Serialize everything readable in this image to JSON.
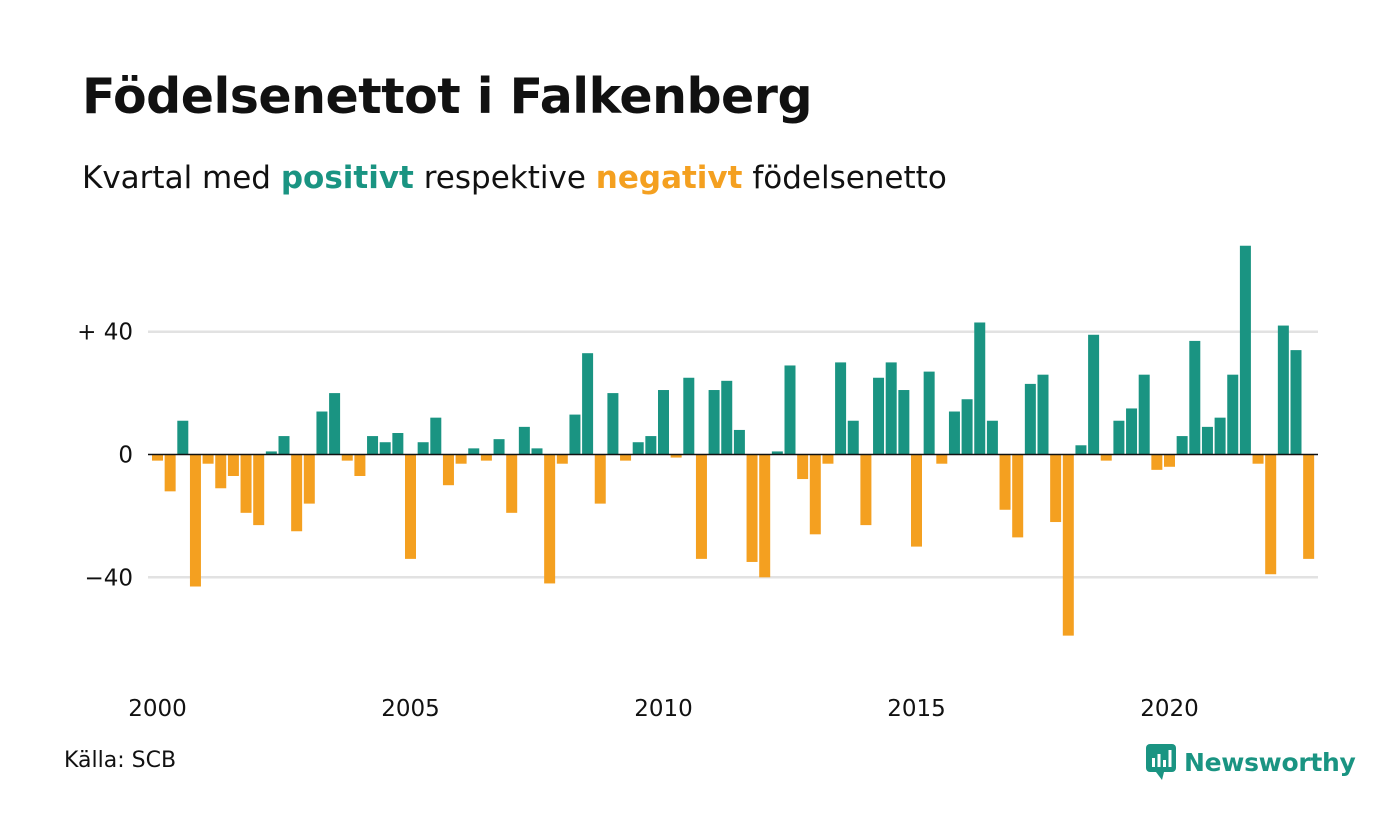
{
  "title": "Födelsenettot i Falkenberg",
  "subtitle": {
    "prefix": "Kvartal med ",
    "positive": "positivt",
    "middle": " respektive ",
    "negative": "negativt",
    "suffix": " födelsenetto"
  },
  "source": "Källa: SCB",
  "brand": {
    "name": "Newsworthy",
    "icon": "newsworthy-logo-icon"
  },
  "colors": {
    "positive": "#1a9482",
    "negative": "#f4a020",
    "grid": "#e2e2e2",
    "zero_line": "#111111"
  },
  "chart_data": {
    "type": "bar",
    "xlabel": "",
    "ylabel": "",
    "ylim": [
      -65,
      70
    ],
    "y_ticks": [
      {
        "value": 40,
        "label": "+ 40"
      },
      {
        "value": 0,
        "label": "0"
      },
      {
        "value": -40,
        "label": "−40"
      }
    ],
    "x_ticks": [
      {
        "value": 2000,
        "label": "2000"
      },
      {
        "value": 2005,
        "label": "2005"
      },
      {
        "value": 2010,
        "label": "2010"
      },
      {
        "value": 2015,
        "label": "2015"
      },
      {
        "value": 2020,
        "label": "2020"
      }
    ],
    "start_year": 2000,
    "grid": true,
    "legend": "none",
    "values": [
      -2,
      -12,
      11,
      -43,
      -3,
      -11,
      -7,
      -19,
      -23,
      1,
      6,
      -25,
      -16,
      14,
      20,
      -2,
      -7,
      6,
      4,
      7,
      -34,
      4,
      12,
      -10,
      -3,
      2,
      -2,
      5,
      -19,
      9,
      2,
      -42,
      -3,
      13,
      33,
      -16,
      20,
      -2,
      4,
      6,
      21,
      -1,
      25,
      -34,
      21,
      24,
      8,
      -35,
      -40,
      1,
      29,
      -8,
      -26,
      -3,
      30,
      11,
      -23,
      25,
      30,
      21,
      -30,
      27,
      -3,
      14,
      18,
      43,
      11,
      -18,
      -27,
      23,
      26,
      -22,
      -59,
      3,
      39,
      -2,
      11,
      15,
      26,
      -5,
      -4,
      6,
      37,
      9,
      12,
      26,
      68,
      -3,
      -39,
      42,
      34,
      -34
    ]
  }
}
